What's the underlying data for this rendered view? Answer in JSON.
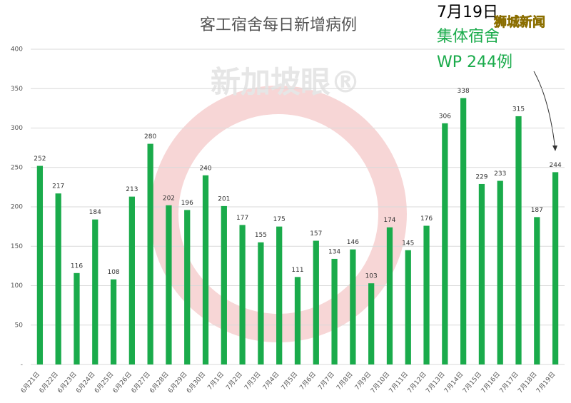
{
  "chart_data": {
    "type": "bar",
    "title": "客工宿舍每日新增病例",
    "categories": [
      "6月21日",
      "6月22日",
      "6月23日",
      "6月24日",
      "6月25日",
      "6月26日",
      "6月27日",
      "6月28日",
      "6月29日",
      "6月30日",
      "7月1日",
      "7月2日",
      "7月3日",
      "7月4日",
      "7月5日",
      "7月6日",
      "7月7日",
      "7月8日",
      "7月9日",
      "7月10日",
      "7月11日",
      "7月12日",
      "7月13日",
      "7月14日",
      "7月15日",
      "7月16日",
      "7月17日",
      "7月18日",
      "7月19日"
    ],
    "values": [
      252,
      217,
      116,
      184,
      108,
      213,
      280,
      202,
      196,
      240,
      201,
      177,
      155,
      175,
      111,
      157,
      134,
      146,
      103,
      174,
      145,
      176,
      306,
      338,
      229,
      233,
      315,
      187,
      244
    ],
    "color": "#1aab4b",
    "ylim": [
      0,
      400
    ],
    "yticks": [
      {
        "value": 0,
        "label": "-"
      },
      50,
      100,
      150,
      200,
      250,
      300,
      350,
      400
    ],
    "grid": true,
    "annotations": [
      "7月19日",
      "集体宿舍",
      "WP 244例"
    ],
    "watermarks": [
      "狮城新闻",
      "新加坡眼®"
    ]
  }
}
